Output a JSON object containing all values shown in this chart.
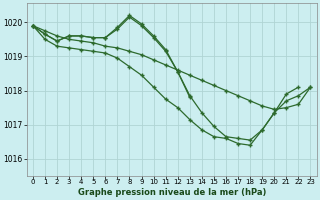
{
  "title": "Graphe pression niveau de la mer (hPa)",
  "bg_color": "#cceef0",
  "grid_color": "#aacccc",
  "line_color": "#2d6a2d",
  "marker_color": "#2d6a2d",
  "x_ticks": [
    0,
    1,
    2,
    3,
    4,
    5,
    6,
    7,
    8,
    9,
    10,
    11,
    12,
    13,
    14,
    15,
    16,
    17,
    18,
    19,
    20,
    21,
    22,
    23
  ],
  "y_ticks": [
    1016,
    1017,
    1018,
    1019,
    1020
  ],
  "ylim": [
    1015.5,
    1020.55
  ],
  "xlim": [
    -0.5,
    23.5
  ],
  "series": [
    {
      "x": [
        0,
        1,
        2,
        3,
        4,
        5,
        6,
        7,
        8,
        9,
        10,
        11,
        12,
        13,
        14,
        15,
        16,
        17,
        18,
        19,
        20,
        21,
        22
      ],
      "y": [
        1019.9,
        1019.65,
        1019.45,
        1019.6,
        1019.6,
        1019.55,
        1019.55,
        1019.8,
        1020.15,
        1019.9,
        1019.55,
        1019.15,
        1018.55,
        1017.85,
        1017.35,
        1016.95,
        1016.65,
        1016.6,
        1016.55,
        1016.85,
        1017.35,
        1017.9,
        1018.1
      ]
    },
    {
      "x": [
        0,
        1,
        2,
        3,
        4,
        5,
        6,
        7,
        8,
        9,
        10,
        11,
        12,
        13
      ],
      "y": [
        1019.9,
        1019.65,
        1019.45,
        1019.6,
        1019.6,
        1019.55,
        1019.55,
        1019.85,
        1020.2,
        1019.95,
        1019.6,
        1019.2,
        1018.55,
        1017.8
      ]
    },
    {
      "x": [
        0,
        1,
        2,
        3,
        4,
        5,
        6,
        7,
        8,
        9,
        10,
        11,
        12,
        13,
        14,
        15,
        16,
        17,
        18,
        19,
        20,
        21,
        22,
        23
      ],
      "y": [
        1019.9,
        1019.75,
        1019.6,
        1019.5,
        1019.45,
        1019.4,
        1019.3,
        1019.25,
        1019.15,
        1019.05,
        1018.9,
        1018.75,
        1018.6,
        1018.45,
        1018.3,
        1018.15,
        1018.0,
        1017.85,
        1017.7,
        1017.55,
        1017.45,
        1017.5,
        1017.6,
        1018.1
      ]
    },
    {
      "x": [
        0,
        1,
        2,
        3,
        4,
        5,
        6,
        7,
        8,
        9,
        10,
        11,
        12,
        13,
        14,
        15,
        16,
        17,
        18,
        19,
        20,
        21,
        22,
        23
      ],
      "y": [
        1019.9,
        1019.5,
        1019.3,
        1019.25,
        1019.2,
        1019.15,
        1019.1,
        1018.95,
        1018.7,
        1018.45,
        1018.1,
        1017.75,
        1017.5,
        1017.15,
        1016.85,
        1016.65,
        1016.6,
        1016.45,
        1016.4,
        1016.85,
        1017.35,
        1017.7,
        1017.85,
        1018.1
      ]
    }
  ]
}
